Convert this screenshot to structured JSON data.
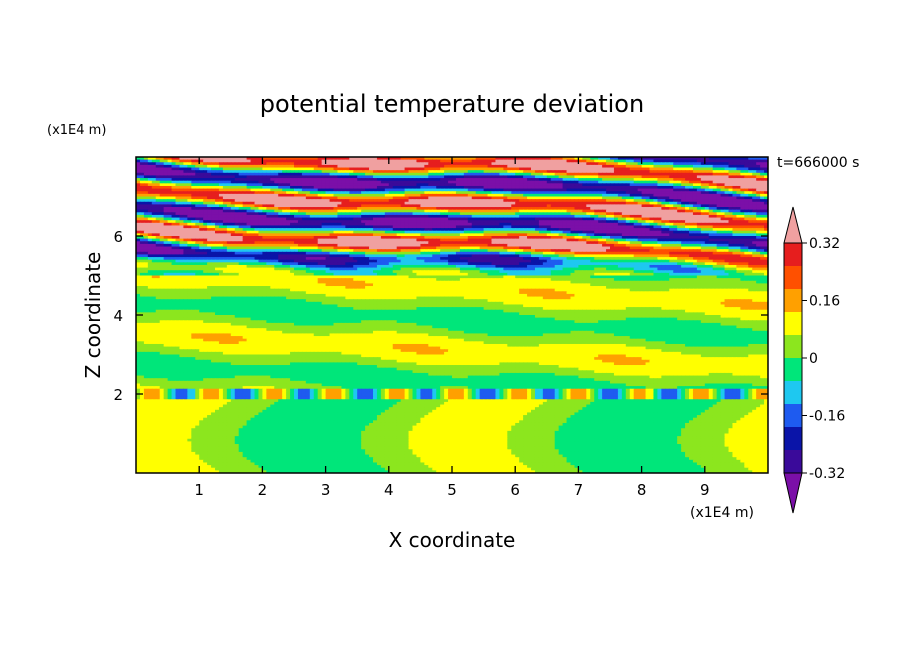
{
  "chart_data": {
    "type": "heatmap",
    "title": "potential temperature deviation",
    "xlabel": "X coordinate",
    "ylabel": "Z coordinate",
    "x_unit": "(x1E4 m)",
    "y_unit": "(x1E4 m)",
    "time_label": "t=666000 s",
    "xlim": [
      0,
      10
    ],
    "ylim": [
      0,
      8
    ],
    "x_ticks": [
      1,
      2,
      3,
      4,
      5,
      6,
      7,
      8,
      9
    ],
    "y_ticks": [
      2,
      4,
      6
    ],
    "x_tick_labels": [
      "1",
      "2",
      "3",
      "4",
      "5",
      "6",
      "7",
      "8",
      "9"
    ],
    "y_tick_labels": [
      "2",
      "4",
      "6"
    ],
    "colorbar": {
      "levels": [
        -0.4,
        -0.32,
        -0.24,
        -0.16,
        -0.08,
        0,
        0.08,
        0.16,
        0.24,
        0.32,
        0.4
      ],
      "colors": [
        "#7b0fa8",
        "#3a0a9a",
        "#0a14a8",
        "#1e5bf0",
        "#1ec8f0",
        "#00e67a",
        "#8ce61e",
        "#ffff00",
        "#ffa000",
        "#ff5000",
        "#e61e1e",
        "#f0a0a0"
      ],
      "labels": [
        "0.32",
        "0.16",
        "0",
        "-0.16",
        "-0.32"
      ],
      "label_values": [
        0.32,
        0.16,
        0,
        -0.16,
        -0.32
      ]
    }
  }
}
